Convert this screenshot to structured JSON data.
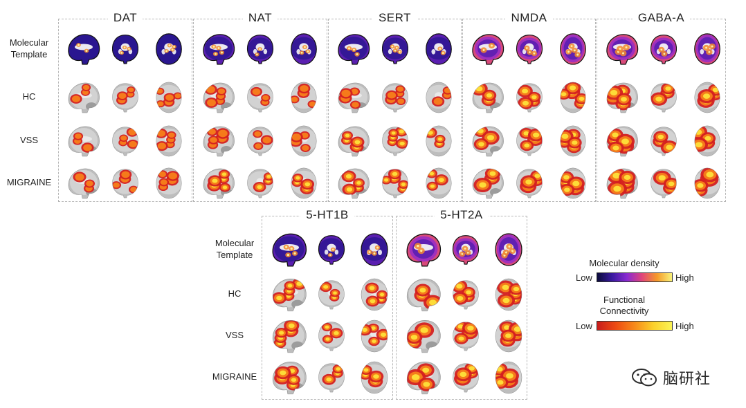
{
  "panels_top": [
    {
      "title": "DAT"
    },
    {
      "title": "NAT"
    },
    {
      "title": "SERT"
    },
    {
      "title": "NMDA"
    },
    {
      "title": "GABA-A"
    }
  ],
  "panels_bottom": [
    {
      "title": "5-HT1B"
    },
    {
      "title": "5-HT2A"
    }
  ],
  "row_labels": {
    "molecular": "Molecular\nTemplate",
    "hc": "HC",
    "vss": "VSS",
    "migraine": "MIGRAINE"
  },
  "legend": {
    "molecular_title": "Molecular density",
    "functional_title": "Functional\nConnectivity",
    "low": "Low",
    "high": "High",
    "molecular_colors": [
      "#0b0b3a",
      "#3a1aa0",
      "#8a2bd0",
      "#e0457a",
      "#f59a2a",
      "#f9f27a"
    ],
    "functional_colors": [
      "#c81d1d",
      "#ee4b12",
      "#f88a1a",
      "#fbd02a",
      "#fbf455"
    ]
  },
  "watermark": {
    "text": "脑研社",
    "icon": "wechat-icon"
  }
}
